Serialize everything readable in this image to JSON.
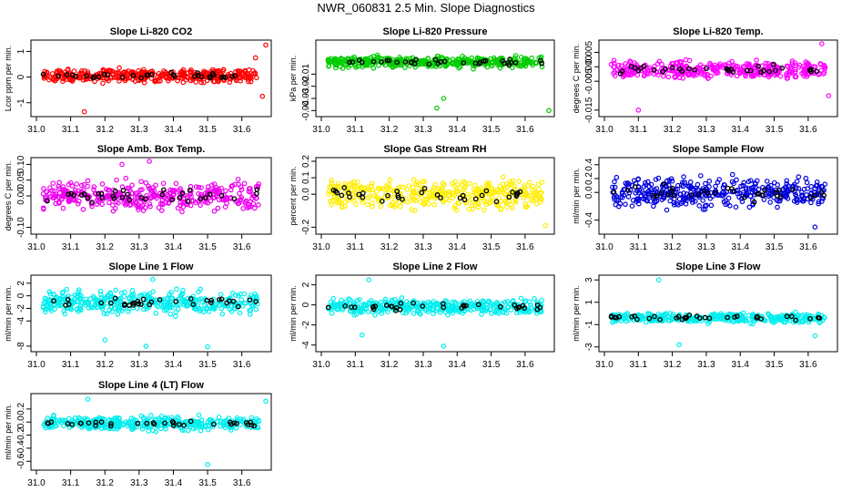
{
  "page": {
    "title": "NWR_060831  2.5 Min. Slope Diagnostics"
  },
  "chart_data": [
    {
      "type": "scatter",
      "title": "Slope Li-820 CO2",
      "ylabel": "Lcor ppm per min.",
      "xlim": [
        31.0,
        31.67
      ],
      "ylim": [
        -1.4,
        1.3
      ],
      "yticks": [
        "-1",
        "0",
        "1"
      ],
      "xticks": [
        "31.0",
        "31.1",
        "31.2",
        "31.3",
        "31.4",
        "31.5",
        "31.6"
      ],
      "color": "#ff0000",
      "highlight_color": "#000000",
      "band": {
        "mean": 0.05,
        "spread": 0.35
      },
      "outliers": [
        [
          31.14,
          -1.35
        ],
        [
          31.64,
          0.75
        ],
        [
          31.67,
          1.25
        ],
        [
          31.66,
          -0.75
        ]
      ]
    },
    {
      "type": "scatter",
      "title": "Slope Li-820 Pressure",
      "ylabel": "kPa per min.",
      "xlim": [
        31.0,
        31.67
      ],
      "ylim": [
        -0.042,
        0.015
      ],
      "yticks": [
        "-0.04",
        "-0.03",
        "-0.02",
        "-0.01"
      ],
      "xticks": [
        "31.0",
        "31.1",
        "31.2",
        "31.3",
        "31.4",
        "31.5",
        "31.6"
      ],
      "color": "#00cc00",
      "highlight_color": "#000000",
      "band": {
        "mean": 0.0,
        "spread": 0.006
      },
      "outliers": [
        [
          31.34,
          -0.038
        ],
        [
          31.36,
          -0.03
        ],
        [
          31.67,
          -0.04
        ]
      ]
    },
    {
      "type": "scatter",
      "title": "Slope Li-820 Temp.",
      "ylabel": "degrees C per min.",
      "xlim": [
        31.0,
        31.67
      ],
      "ylim": [
        -0.016,
        0.008
      ],
      "yticks": [
        "-0.015",
        "-0.005",
        "0.000",
        "0.005"
      ],
      "xticks": [
        "31.0",
        "31.1",
        "31.2",
        "31.3",
        "31.4",
        "31.5",
        "31.6"
      ],
      "color": "#ff00ff",
      "highlight_color": "#000000",
      "band": {
        "mean": -0.001,
        "spread": 0.004
      },
      "outliers": [
        [
          31.1,
          -0.015
        ],
        [
          31.64,
          0.008
        ],
        [
          31.66,
          -0.01
        ]
      ]
    },
    {
      "type": "scatter",
      "title": "Slope Amb. Box Temp.",
      "ylabel": "degrees C per min.",
      "xlim": [
        31.0,
        31.67
      ],
      "ylim": [
        -0.11,
        0.11
      ],
      "yticks": [
        "-0.10",
        "0.00",
        "0.05",
        "0.10"
      ],
      "xticks": [
        "31.0",
        "31.1",
        "31.2",
        "31.3",
        "31.4",
        "31.5",
        "31.6"
      ],
      "color": "#ee00ee",
      "highlight_color": "#000000",
      "band": {
        "mean": 0.0,
        "spread": 0.06
      },
      "outliers": [
        [
          31.25,
          0.1
        ],
        [
          31.33,
          0.12
        ]
      ]
    },
    {
      "type": "scatter",
      "title": "Slope Gas Stream RH",
      "ylabel": "percent per min.",
      "xlim": [
        31.0,
        31.67
      ],
      "ylim": [
        -0.22,
        0.2
      ],
      "yticks": [
        "-0.2",
        "0.0",
        "0.1",
        "0.2"
      ],
      "xticks": [
        "31.0",
        "31.1",
        "31.2",
        "31.3",
        "31.4",
        "31.5",
        "31.6"
      ],
      "color": "#ffee00",
      "highlight_color": "#000000",
      "band": {
        "mean": 0.0,
        "spread": 0.12
      },
      "outliers": [
        [
          31.66,
          -0.19
        ]
      ]
    },
    {
      "type": "scatter",
      "title": "Slope Sample Flow",
      "ylabel": "ml/min per min.",
      "xlim": [
        31.0,
        31.67
      ],
      "ylim": [
        -0.55,
        0.45
      ],
      "yticks": [
        "-0.4",
        "0.0",
        "0.2",
        "0.4"
      ],
      "xticks": [
        "31.0",
        "31.1",
        "31.2",
        "31.3",
        "31.4",
        "31.5",
        "31.6"
      ],
      "color": "#0000dd",
      "highlight_color": "#000000",
      "band": {
        "mean": 0.0,
        "spread": 0.3
      },
      "outliers": [
        [
          31.62,
          -0.5
        ]
      ]
    },
    {
      "type": "scatter",
      "title": "Slope Line 1 Flow",
      "ylabel": "ml/min per min.",
      "xlim": [
        31.0,
        31.67
      ],
      "ylim": [
        -8.3,
        2.7
      ],
      "yticks": [
        "-8",
        "-4",
        "-2",
        "0",
        "2"
      ],
      "xticks": [
        "31.0",
        "31.1",
        "31.2",
        "31.3",
        "31.4",
        "31.5",
        "31.6"
      ],
      "color": "#00eeee",
      "highlight_color": "#000000",
      "band": {
        "mean": -1.0,
        "spread": 2.5
      },
      "outliers": [
        [
          31.34,
          2.6
        ],
        [
          31.32,
          -8.0
        ],
        [
          31.5,
          -8.1
        ],
        [
          31.2,
          -7.0
        ]
      ]
    },
    {
      "type": "scatter",
      "title": "Slope Line 2 Flow",
      "ylabel": "ml/min per min.",
      "xlim": [
        31.0,
        31.67
      ],
      "ylim": [
        -4.3,
        2.6
      ],
      "yticks": [
        "-4",
        "-2",
        "0",
        "2"
      ],
      "xticks": [
        "31.0",
        "31.1",
        "31.2",
        "31.3",
        "31.4",
        "31.5",
        "31.6"
      ],
      "color": "#00eeee",
      "highlight_color": "#000000",
      "band": {
        "mean": -0.2,
        "spread": 1.0
      },
      "outliers": [
        [
          31.14,
          2.5
        ],
        [
          31.36,
          -4.1
        ],
        [
          31.12,
          -3.0
        ]
      ]
    },
    {
      "type": "scatter",
      "title": "Slope Line 3 Flow",
      "ylabel": "ml/min per min.",
      "xlim": [
        31.0,
        31.67
      ],
      "ylim": [
        -3.1,
        3.1
      ],
      "yticks": [
        "-3",
        "-1",
        "1",
        "3"
      ],
      "xticks": [
        "31.0",
        "31.1",
        "31.2",
        "31.3",
        "31.4",
        "31.5",
        "31.6"
      ],
      "color": "#00eeee",
      "highlight_color": "#000000",
      "band": {
        "mean": -0.4,
        "spread": 0.6
      },
      "outliers": [
        [
          31.16,
          3.0
        ],
        [
          31.22,
          -2.8
        ],
        [
          31.62,
          -2.0
        ]
      ]
    },
    {
      "type": "scatter",
      "title": "Slope Line 4 (LT) Flow",
      "ylabel": "ml/min per min.",
      "xlim": [
        31.0,
        31.67
      ],
      "ylim": [
        -0.68,
        0.38
      ],
      "yticks": [
        "-0.6",
        "-0.4",
        "-0.2",
        "0.0",
        "0.2"
      ],
      "xticks": [
        "31.0",
        "31.1",
        "31.2",
        "31.3",
        "31.4",
        "31.5",
        "31.6"
      ],
      "color": "#00eeee",
      "highlight_color": "#000000",
      "band": {
        "mean": -0.02,
        "spread": 0.14
      },
      "outliers": [
        [
          31.5,
          -0.65
        ],
        [
          31.67,
          0.32
        ],
        [
          31.15,
          0.35
        ]
      ]
    }
  ]
}
